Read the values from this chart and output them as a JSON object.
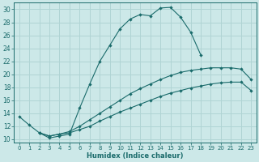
{
  "xlabel": "Humidex (Indice chaleur)",
  "background_color": "#cce8e8",
  "grid_color": "#b0d4d4",
  "line_color": "#1a6b6b",
  "xlim": [
    -0.5,
    23.5
  ],
  "ylim": [
    9.5,
    31
  ],
  "xticks": [
    0,
    1,
    2,
    3,
    4,
    5,
    6,
    7,
    8,
    9,
    10,
    11,
    12,
    13,
    14,
    15,
    16,
    17,
    18,
    19,
    20,
    21,
    22,
    23
  ],
  "yticks": [
    10,
    12,
    14,
    16,
    18,
    20,
    22,
    24,
    26,
    28,
    30
  ],
  "line1_x": [
    0,
    1,
    2,
    3,
    4,
    5,
    6,
    7,
    8,
    9,
    10,
    11,
    12,
    13,
    14,
    15,
    16,
    17,
    18
  ],
  "line1_y": [
    13.5,
    12.2,
    11.0,
    10.2,
    10.5,
    10.8,
    14.8,
    18.5,
    22.0,
    24.5,
    27.0,
    28.5,
    29.2,
    29.0,
    30.2,
    30.3,
    28.8,
    26.5,
    23.0
  ],
  "line2_x": [
    2,
    3,
    4,
    5,
    6,
    7,
    8,
    9,
    10,
    11,
    12,
    13,
    14,
    15,
    16,
    17,
    18,
    19,
    20,
    21,
    22,
    23
  ],
  "line2_y": [
    11.0,
    10.5,
    10.8,
    11.2,
    12.0,
    13.0,
    14.0,
    15.0,
    16.0,
    17.0,
    17.8,
    18.5,
    19.2,
    19.8,
    20.3,
    20.6,
    20.8,
    21.0,
    21.0,
    21.0,
    20.8,
    19.2
  ],
  "line3_x": [
    2,
    3,
    4,
    5,
    6,
    7,
    8,
    9,
    10,
    11,
    12,
    13,
    14,
    15,
    16,
    17,
    18,
    19,
    20,
    21,
    22,
    23
  ],
  "line3_y": [
    11.0,
    10.5,
    10.8,
    11.0,
    11.5,
    12.0,
    12.8,
    13.5,
    14.2,
    14.8,
    15.4,
    16.0,
    16.6,
    17.1,
    17.5,
    17.9,
    18.2,
    18.5,
    18.7,
    18.8,
    18.8,
    17.5
  ]
}
